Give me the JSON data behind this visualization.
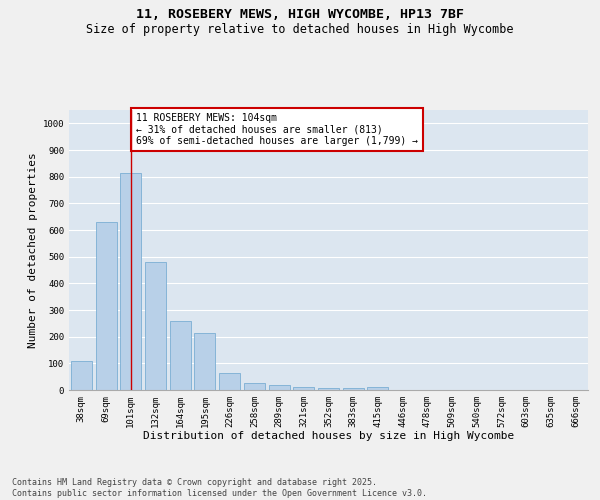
{
  "title_line1": "11, ROSEBERY MEWS, HIGH WYCOMBE, HP13 7BF",
  "title_line2": "Size of property relative to detached houses in High Wycombe",
  "xlabel": "Distribution of detached houses by size in High Wycombe",
  "ylabel": "Number of detached properties",
  "categories": [
    "38sqm",
    "69sqm",
    "101sqm",
    "132sqm",
    "164sqm",
    "195sqm",
    "226sqm",
    "258sqm",
    "289sqm",
    "321sqm",
    "352sqm",
    "383sqm",
    "415sqm",
    "446sqm",
    "478sqm",
    "509sqm",
    "540sqm",
    "572sqm",
    "603sqm",
    "635sqm",
    "666sqm"
  ],
  "values": [
    110,
    630,
    815,
    480,
    258,
    212,
    65,
    27,
    20,
    13,
    8,
    8,
    10,
    0,
    0,
    0,
    0,
    0,
    0,
    0,
    0
  ],
  "bar_color": "#b8d0e8",
  "bar_edge_color": "#7baed4",
  "red_line_x": 2,
  "annotation_text": "11 ROSEBERY MEWS: 104sqm\n← 31% of detached houses are smaller (813)\n69% of semi-detached houses are larger (1,799) →",
  "annotation_box_color": "#ffffff",
  "annotation_border_color": "#cc0000",
  "ylim": [
    0,
    1050
  ],
  "yticks": [
    0,
    100,
    200,
    300,
    400,
    500,
    600,
    700,
    800,
    900,
    1000
  ],
  "plot_bg_color": "#dce6f0",
  "fig_bg_color": "#f0f0f0",
  "grid_color": "#ffffff",
  "footer_text": "Contains HM Land Registry data © Crown copyright and database right 2025.\nContains public sector information licensed under the Open Government Licence v3.0.",
  "title_fontsize": 9.5,
  "subtitle_fontsize": 8.5,
  "axis_label_fontsize": 8,
  "tick_fontsize": 6.5,
  "annotation_fontsize": 7,
  "footer_fontsize": 6
}
